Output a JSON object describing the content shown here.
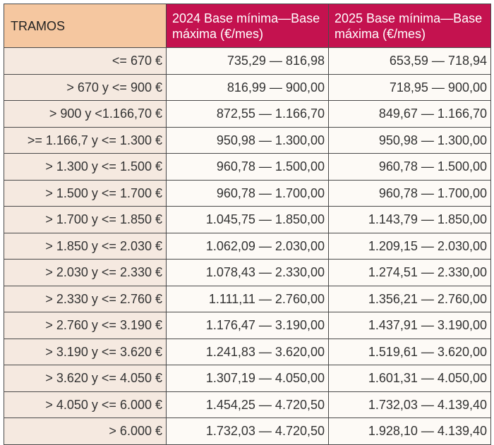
{
  "table": {
    "headers": {
      "tramos": "TRAMOS",
      "y2024": "2024 Base mínima—Base máxima (€/mes)",
      "y2025": "2025 Base mínima—Base máxima (€/mes)"
    },
    "rows": [
      {
        "tramo": "<= 670 €",
        "y2024": "735,29 — 816,98",
        "y2025": "653,59 — 718,94"
      },
      {
        "tramo": "> 670 y <= 900 €",
        "y2024": "816,99 — 900,00",
        "y2025": "718,95 — 900,00"
      },
      {
        "tramo": "> 900 y <1.166,70 €",
        "y2024": "872,55 — 1.166,70",
        "y2025": "849,67 — 1.166,70"
      },
      {
        "tramo": ">= 1.166,7 y <= 1.300 €",
        "y2024": "950,98 — 1.300,00",
        "y2025": "950,98 — 1.300,00"
      },
      {
        "tramo": "> 1.300 y <= 1.500 €",
        "y2024": "960,78 — 1.500,00",
        "y2025": "960,78 — 1.500,00"
      },
      {
        "tramo": "> 1.500 y <= 1.700 €",
        "y2024": "960,78 — 1.700,00",
        "y2025": "960,78 — 1.700,00"
      },
      {
        "tramo": "> 1.700 y <= 1.850 €",
        "y2024": "1.045,75 — 1.850,00",
        "y2025": "1.143,79 — 1.850,00"
      },
      {
        "tramo": "> 1.850 y <= 2.030 €",
        "y2024": "1.062,09 — 2.030,00",
        "y2025": "1.209,15 — 2.030,00"
      },
      {
        "tramo": "> 2.030 y <= 2.330 €",
        "y2024": "1.078,43 — 2.330,00",
        "y2025": "1.274,51 — 2.330,00"
      },
      {
        "tramo": "> 2.330 y <= 2.760 €",
        "y2024": "1.111,11 — 2.760,00",
        "y2025": "1.356,21 — 2.760,00"
      },
      {
        "tramo": "> 2.760 y <= 3.190 €",
        "y2024": "1.176,47 — 3.190,00",
        "y2025": "1.437,91 — 3.190,00"
      },
      {
        "tramo": "> 3.190 y <= 3.620 €",
        "y2024": "1.241,83 — 3.620,00",
        "y2025": "1.519,61 — 3.620,00"
      },
      {
        "tramo": "> 3.620 y <= 4.050 €",
        "y2024": "1.307,19 — 4.050,00",
        "y2025": "1.601,31 — 4.050,00"
      },
      {
        "tramo": "> 4.050 y <= 6.000 €",
        "y2024": "1.454,25 — 4.720,50",
        "y2025": "1.732,03 — 4.139,40"
      },
      {
        "tramo": "> 6.000 €",
        "y2024": "1.732,03 — 4.720,50",
        "y2025": "1.928,10 — 4.139,40"
      }
    ]
  },
  "colors": {
    "header_tramos_bg": "#f5c7a0",
    "header_year_bg": "#c4124f",
    "tramo_cell_bg": "#f5e9e0",
    "value_cell_bg": "#fdfaf6",
    "border": "#4a4a4a"
  }
}
